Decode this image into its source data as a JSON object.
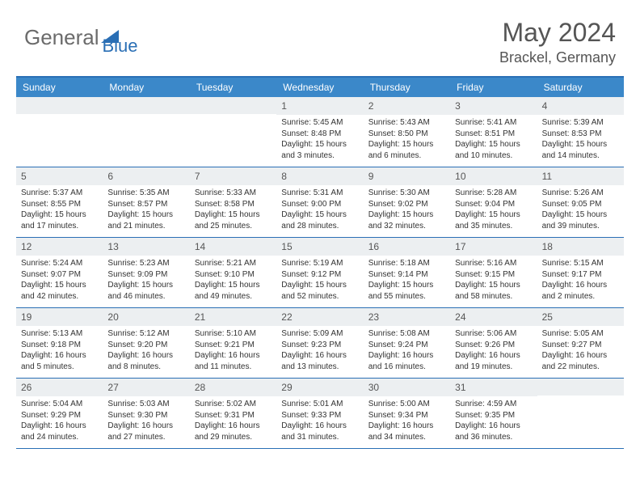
{
  "logo": {
    "part1": "General",
    "part2": "Blue"
  },
  "title": {
    "month_year": "May 2024",
    "location": "Brackel, Germany"
  },
  "day_names": [
    "Sunday",
    "Monday",
    "Tuesday",
    "Wednesday",
    "Thursday",
    "Friday",
    "Saturday"
  ],
  "colors": {
    "header_bar": "#3b88c9",
    "border": "#2a6fb5",
    "daynum_bg": "#eceff1",
    "text": "#333333",
    "logo_gray": "#6b6b6b",
    "logo_blue": "#2a6fb5"
  },
  "weeks": [
    [
      null,
      null,
      null,
      null,
      {
        "n": "1",
        "sr": "5:45 AM",
        "ss": "8:48 PM",
        "dl": "15 hours and 3 minutes."
      },
      {
        "n": "2",
        "sr": "5:43 AM",
        "ss": "8:50 PM",
        "dl": "15 hours and 6 minutes."
      },
      {
        "n": "3",
        "sr": "5:41 AM",
        "ss": "8:51 PM",
        "dl": "15 hours and 10 minutes."
      },
      {
        "n": "4",
        "sr": "5:39 AM",
        "ss": "8:53 PM",
        "dl": "15 hours and 14 minutes."
      }
    ],
    [
      {
        "n": "5",
        "sr": "5:37 AM",
        "ss": "8:55 PM",
        "dl": "15 hours and 17 minutes."
      },
      {
        "n": "6",
        "sr": "5:35 AM",
        "ss": "8:57 PM",
        "dl": "15 hours and 21 minutes."
      },
      {
        "n": "7",
        "sr": "5:33 AM",
        "ss": "8:58 PM",
        "dl": "15 hours and 25 minutes."
      },
      {
        "n": "8",
        "sr": "5:31 AM",
        "ss": "9:00 PM",
        "dl": "15 hours and 28 minutes."
      },
      {
        "n": "9",
        "sr": "5:30 AM",
        "ss": "9:02 PM",
        "dl": "15 hours and 32 minutes."
      },
      {
        "n": "10",
        "sr": "5:28 AM",
        "ss": "9:04 PM",
        "dl": "15 hours and 35 minutes."
      },
      {
        "n": "11",
        "sr": "5:26 AM",
        "ss": "9:05 PM",
        "dl": "15 hours and 39 minutes."
      }
    ],
    [
      {
        "n": "12",
        "sr": "5:24 AM",
        "ss": "9:07 PM",
        "dl": "15 hours and 42 minutes."
      },
      {
        "n": "13",
        "sr": "5:23 AM",
        "ss": "9:09 PM",
        "dl": "15 hours and 46 minutes."
      },
      {
        "n": "14",
        "sr": "5:21 AM",
        "ss": "9:10 PM",
        "dl": "15 hours and 49 minutes."
      },
      {
        "n": "15",
        "sr": "5:19 AM",
        "ss": "9:12 PM",
        "dl": "15 hours and 52 minutes."
      },
      {
        "n": "16",
        "sr": "5:18 AM",
        "ss": "9:14 PM",
        "dl": "15 hours and 55 minutes."
      },
      {
        "n": "17",
        "sr": "5:16 AM",
        "ss": "9:15 PM",
        "dl": "15 hours and 58 minutes."
      },
      {
        "n": "18",
        "sr": "5:15 AM",
        "ss": "9:17 PM",
        "dl": "16 hours and 2 minutes."
      }
    ],
    [
      {
        "n": "19",
        "sr": "5:13 AM",
        "ss": "9:18 PM",
        "dl": "16 hours and 5 minutes."
      },
      {
        "n": "20",
        "sr": "5:12 AM",
        "ss": "9:20 PM",
        "dl": "16 hours and 8 minutes."
      },
      {
        "n": "21",
        "sr": "5:10 AM",
        "ss": "9:21 PM",
        "dl": "16 hours and 11 minutes."
      },
      {
        "n": "22",
        "sr": "5:09 AM",
        "ss": "9:23 PM",
        "dl": "16 hours and 13 minutes."
      },
      {
        "n": "23",
        "sr": "5:08 AM",
        "ss": "9:24 PM",
        "dl": "16 hours and 16 minutes."
      },
      {
        "n": "24",
        "sr": "5:06 AM",
        "ss": "9:26 PM",
        "dl": "16 hours and 19 minutes."
      },
      {
        "n": "25",
        "sr": "5:05 AM",
        "ss": "9:27 PM",
        "dl": "16 hours and 22 minutes."
      }
    ],
    [
      {
        "n": "26",
        "sr": "5:04 AM",
        "ss": "9:29 PM",
        "dl": "16 hours and 24 minutes."
      },
      {
        "n": "27",
        "sr": "5:03 AM",
        "ss": "9:30 PM",
        "dl": "16 hours and 27 minutes."
      },
      {
        "n": "28",
        "sr": "5:02 AM",
        "ss": "9:31 PM",
        "dl": "16 hours and 29 minutes."
      },
      {
        "n": "29",
        "sr": "5:01 AM",
        "ss": "9:33 PM",
        "dl": "16 hours and 31 minutes."
      },
      {
        "n": "30",
        "sr": "5:00 AM",
        "ss": "9:34 PM",
        "dl": "16 hours and 34 minutes."
      },
      {
        "n": "31",
        "sr": "4:59 AM",
        "ss": "9:35 PM",
        "dl": "16 hours and 36 minutes."
      },
      null
    ]
  ],
  "labels": {
    "sunrise": "Sunrise: ",
    "sunset": "Sunset: ",
    "daylight": "Daylight: "
  }
}
